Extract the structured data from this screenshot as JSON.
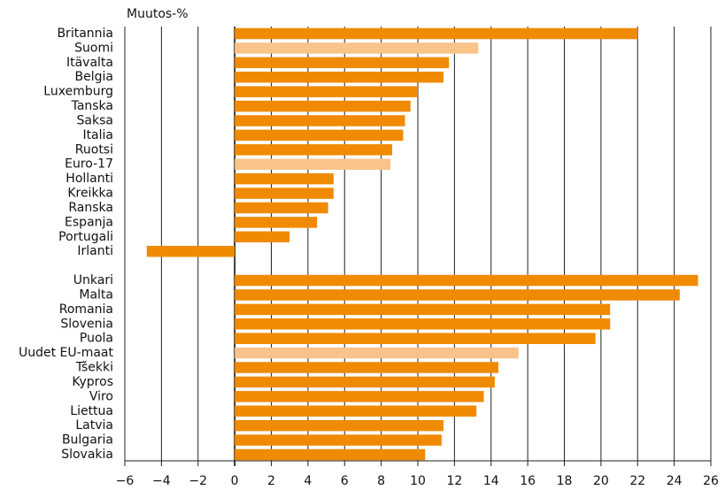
{
  "chart_data": {
    "type": "barh",
    "xlabel": "Muutos-%",
    "categories": [
      "Britannia",
      "Suomi",
      "Itävalta",
      "Belgia",
      "Luxemburg",
      "Tanska",
      "Saksa",
      "Italia",
      "Ruotsi",
      "Euro-17",
      "Hollanti",
      "Kreikka",
      "Ranska",
      "Espanja",
      "Portugali",
      "Irlanti",
      null,
      "Unkari",
      "Malta",
      "Romania",
      "Slovenia",
      "Puola",
      "Uudet EU-maat",
      "Tšekki",
      "Kypros",
      "Viro",
      "Liettua",
      "Latvia",
      "Bulgaria",
      "Slovakia"
    ],
    "values": [
      22.0,
      13.3,
      11.7,
      11.4,
      10.0,
      9.6,
      9.3,
      9.2,
      8.6,
      8.5,
      5.4,
      5.4,
      5.1,
      4.5,
      3.0,
      -4.8,
      null,
      25.3,
      24.3,
      20.5,
      20.5,
      19.7,
      15.5,
      14.4,
      14.2,
      13.6,
      13.2,
      11.4,
      11.3,
      10.4
    ],
    "colors": [
      "#f08a00",
      "#f9c38a",
      "#f08a00",
      "#f08a00",
      "#f08a00",
      "#f08a00",
      "#f08a00",
      "#f08a00",
      "#f08a00",
      "#f9c38a",
      "#f08a00",
      "#f08a00",
      "#f08a00",
      "#f08a00",
      "#f08a00",
      "#f08a00",
      null,
      "#f08a00",
      "#f08a00",
      "#f08a00",
      "#f08a00",
      "#f08a00",
      "#f9c38a",
      "#f08a00",
      "#f08a00",
      "#f08a00",
      "#f08a00",
      "#f08a00",
      "#f08a00",
      "#f08a00"
    ],
    "xlim": [
      -6,
      26
    ],
    "xticks": [
      {
        "value": -6,
        "label": "−6"
      },
      {
        "value": -4,
        "label": "−4"
      },
      {
        "value": -2,
        "label": "−2"
      },
      0,
      2,
      4,
      6,
      8,
      10,
      12,
      14,
      16,
      18,
      20,
      22,
      24,
      26
    ],
    "grid": true
  }
}
